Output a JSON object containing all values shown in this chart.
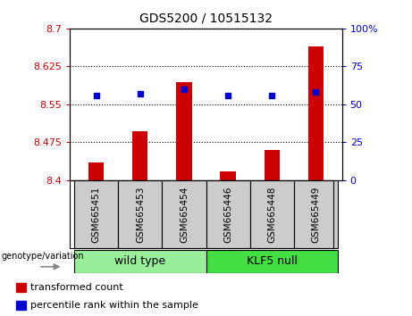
{
  "title": "GDS5200 / 10515132",
  "samples": [
    "GSM665451",
    "GSM665453",
    "GSM665454",
    "GSM665446",
    "GSM665448",
    "GSM665449"
  ],
  "transformed_counts": [
    8.435,
    8.497,
    8.593,
    8.418,
    8.46,
    8.665
  ],
  "percentile_ranks": [
    56,
    57,
    60,
    56,
    56,
    58
  ],
  "y_min": 8.4,
  "y_max": 8.7,
  "y_ticks": [
    8.4,
    8.475,
    8.55,
    8.625,
    8.7
  ],
  "y_tick_labels": [
    "8.4",
    "8.475",
    "8.55",
    "8.625",
    "8.7"
  ],
  "right_y_ticks": [
    0,
    25,
    50,
    75,
    100
  ],
  "right_y_labels": [
    "0",
    "25",
    "50",
    "75",
    "100%"
  ],
  "bar_color": "#cc0000",
  "dot_color": "#0000cc",
  "bar_bottom": 8.4,
  "groups": [
    {
      "label": "wild type",
      "indices": [
        0,
        1,
        2
      ],
      "color": "#99ee99"
    },
    {
      "label": "KLF5 null",
      "indices": [
        3,
        4,
        5
      ],
      "color": "#44dd44"
    }
  ],
  "genotype_label": "genotype/variation",
  "legend_items": [
    {
      "label": "transformed count",
      "color": "#cc0000"
    },
    {
      "label": "percentile rank within the sample",
      "color": "#0000cc"
    }
  ],
  "grid_linestyle": "dotted",
  "left_tick_color": "#cc0000",
  "right_tick_color": "#0000cc",
  "background_color": "#ffffff",
  "sample_box_color": "#cccccc",
  "bar_width": 0.35
}
